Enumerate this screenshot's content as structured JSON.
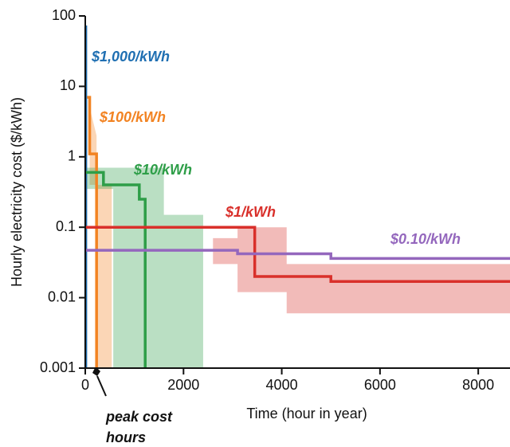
{
  "chart_data": {
    "type": "line",
    "ylabel": "Hourly electricity cost ($/kWh)",
    "xlabel": "Time (hour in year)",
    "log_y": true,
    "xlim": [
      0,
      8760
    ],
    "ylim": [
      0.001,
      100
    ],
    "xticks": [
      0,
      2000,
      4000,
      6000,
      8000
    ],
    "yticks": [
      0.001,
      0.01,
      0.1,
      1,
      10,
      100
    ],
    "annotation": [
      "peak cost",
      "hours"
    ],
    "series": [
      {
        "name": "$1,000/kWh",
        "color": "#1f6fb2",
        "x": [
          0,
          10,
          10
        ],
        "values": [
          70,
          70,
          0.001
        ]
      },
      {
        "name": "$100/kWh",
        "color": "#f28322",
        "x": [
          40,
          90,
          90,
          230,
          230
        ],
        "values": [
          7,
          7,
          1.1,
          1.1,
          0.001
        ],
        "band": {
          "x": [
            90,
            230,
            230,
            540
          ],
          "upper": [
            5,
            2,
            0.4,
            0.4
          ],
          "lower": [
            0.4,
            0.4,
            0.001,
            0.001
          ]
        }
      },
      {
        "name": "$10/kWh",
        "color": "#2e9e48",
        "x": [
          0,
          370,
          370,
          1100,
          1100,
          1220,
          1220
        ],
        "values": [
          0.6,
          0.6,
          0.4,
          0.4,
          0.25,
          0.25,
          0.001
        ],
        "band": {
          "x": [
            0,
            570,
            570,
            1600,
            1600,
            2400
          ],
          "upper": [
            0.7,
            0.7,
            0.7,
            0.7,
            0.15,
            0.15
          ],
          "lower": [
            0.35,
            0.35,
            0.001,
            0.001,
            0.001,
            0.001
          ]
        }
      },
      {
        "name": "$1/kWh",
        "color": "#d9302b",
        "x": [
          0,
          3450,
          3450,
          5000,
          5000,
          8760
        ],
        "values": [
          0.1,
          0.1,
          0.02,
          0.02,
          0.017,
          0.017
        ],
        "band": {
          "x": [
            2600,
            3100,
            3100,
            4100,
            4100,
            8760
          ],
          "upper": [
            0.07,
            0.07,
            0.1,
            0.1,
            0.03,
            0.03
          ],
          "lower": [
            0.03,
            0.03,
            0.012,
            0.012,
            0.006,
            0.006
          ]
        }
      },
      {
        "name": "$0.10/kWh",
        "color": "#9467bd",
        "x": [
          0,
          3100,
          3100,
          5000,
          5000,
          8760
        ],
        "values": [
          0.047,
          0.047,
          0.042,
          0.042,
          0.036,
          0.036
        ]
      }
    ]
  }
}
